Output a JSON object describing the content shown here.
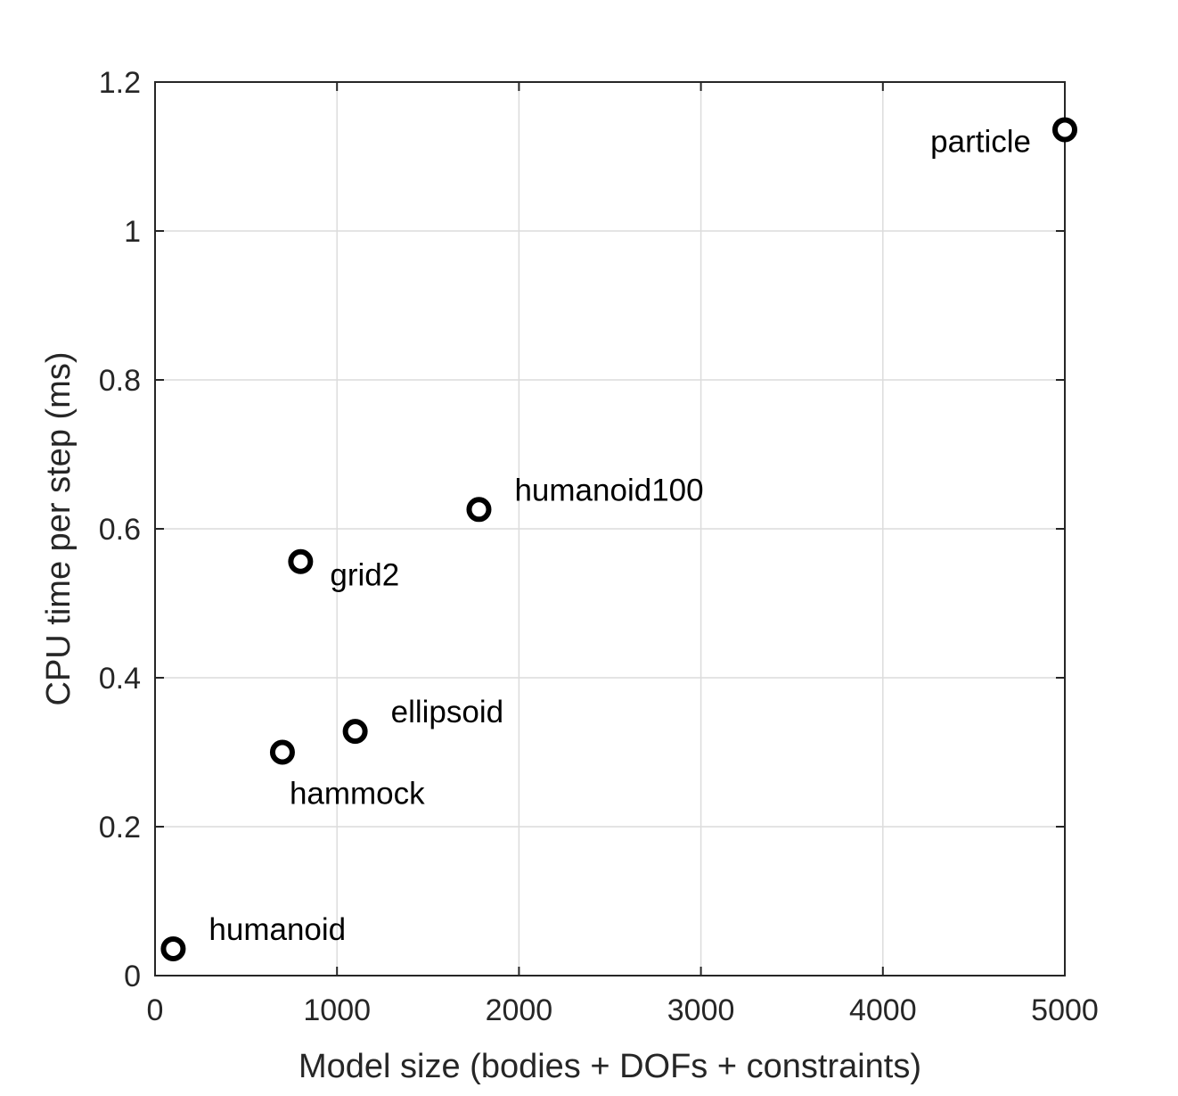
{
  "chart_data": {
    "type": "scatter",
    "xlabel": "Model size (bodies + DOFs + constraints)",
    "ylabel": "CPU time per step (ms)",
    "xlim": [
      0,
      5000
    ],
    "ylim": [
      0,
      1.2
    ],
    "x_ticks": [
      0,
      1000,
      2000,
      3000,
      4000,
      5000
    ],
    "x_tick_labels": [
      "0",
      "1000",
      "2000",
      "3000",
      "4000",
      "5000"
    ],
    "y_ticks": [
      0,
      0.2,
      0.4,
      0.6,
      0.8,
      1.0,
      1.2
    ],
    "y_tick_labels": [
      "0",
      "0.2",
      "0.4",
      "0.6",
      "0.8",
      "1",
      "1.2"
    ],
    "grid": true,
    "marker": "open-circle",
    "marker_color": "#000000",
    "points": [
      {
        "label": "humanoid",
        "x": 100,
        "y": 0.036,
        "label_side": "upper-right"
      },
      {
        "label": "hammock",
        "x": 700,
        "y": 0.3,
        "label_side": "below"
      },
      {
        "label": "grid2",
        "x": 800,
        "y": 0.556,
        "label_side": "lower-right"
      },
      {
        "label": "ellipsoid",
        "x": 1100,
        "y": 0.328,
        "label_side": "upper-right"
      },
      {
        "label": "humanoid100",
        "x": 1780,
        "y": 0.626,
        "label_side": "upper-right"
      },
      {
        "label": "particle",
        "x": 5000,
        "y": 1.136,
        "label_side": "left"
      }
    ]
  }
}
